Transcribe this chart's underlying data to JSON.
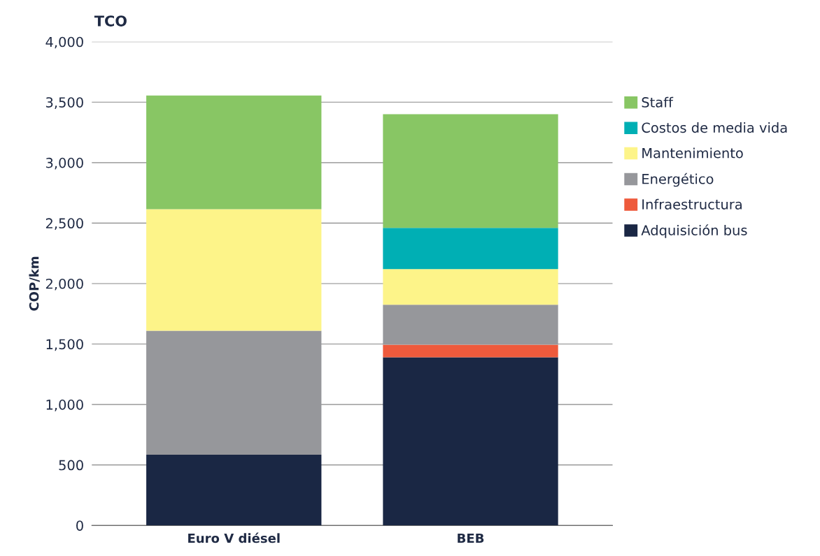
{
  "chart_data": {
    "type": "bar",
    "title": "TCO",
    "ylabel": "COP/km",
    "stacked": true,
    "categories": [
      "Euro V diésel",
      "BEB"
    ],
    "series": [
      {
        "name": "Adquisición bus",
        "color": "#1a2744",
        "values": [
          585,
          1390
        ]
      },
      {
        "name": "Infraestructura",
        "color": "#ee5a3c",
        "values": [
          null,
          105
        ]
      },
      {
        "name": "Energético",
        "color": "#96979b",
        "values": [
          1025,
          330
        ]
      },
      {
        "name": "Mantenimiento",
        "color": "#fdf489",
        "values": [
          1005,
          295
        ]
      },
      {
        "name": "Costos de media vida",
        "color": "#00afb4",
        "values": [
          null,
          340
        ]
      },
      {
        "name": "Staff",
        "color": "#88c664",
        "values": [
          940,
          940
        ]
      }
    ],
    "ylim": [
      0,
      4000
    ],
    "yticks": [
      0,
      500,
      {
        "value": 1000,
        "label": "1,000"
      },
      {
        "value": 1500,
        "label": "1,500"
      },
      {
        "value": 2000,
        "label": "2,000"
      },
      {
        "value": 2500,
        "label": "2,500"
      },
      {
        "value": 3000,
        "label": "3,000"
      },
      {
        "value": 3500,
        "label": "3,500"
      },
      {
        "value": 4000,
        "label": "4,000"
      }
    ],
    "grid": "y",
    "legend": "right"
  }
}
